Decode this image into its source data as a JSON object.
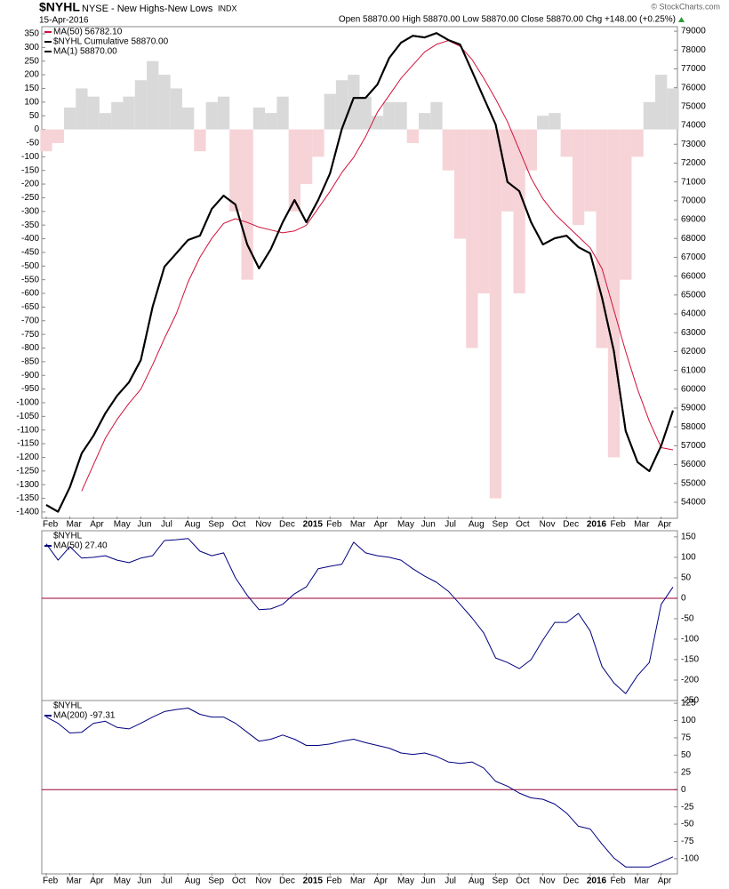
{
  "chart_data": [
    {
      "type": "line",
      "title": "$NYHL",
      "subtitle": "NYSE - New Highs-New Lows",
      "exchange": "INDX",
      "date": "15-Apr-2016",
      "quote": "Open 58870.00  High 58870.00  Low 58870.00  Close 58870.00  Chg +148.00 (+0.25%)",
      "credit": "© StockCharts.com",
      "categories": [
        "Feb",
        null,
        "Mar",
        null,
        "Apr",
        null,
        "May",
        null,
        "Jun",
        null,
        "Jul",
        null,
        "Aug",
        null,
        "Sep",
        null,
        "Oct",
        null,
        "Nov",
        null,
        "Dec",
        null,
        "2015",
        null,
        "Feb",
        null,
        "Mar",
        null,
        "Apr",
        null,
        "May",
        null,
        "Jun",
        null,
        "Jul",
        null,
        "Aug",
        null,
        "Sep",
        null,
        "Oct",
        null,
        "Nov",
        null,
        "Dec",
        null,
        "2016",
        null,
        "Feb",
        null,
        "Mar",
        null,
        "Apr",
        null
      ],
      "ylim": [
        -1423,
        376
      ],
      "yticks": [
        350,
        300,
        250,
        200,
        150,
        100,
        50,
        0,
        -50,
        -100,
        -150,
        -200,
        -250,
        -300,
        -350,
        -400,
        -450,
        -500,
        -550,
        -600,
        -650,
        -700,
        -750,
        -800,
        -850,
        -900,
        -950,
        -1000,
        -1050,
        -1100,
        -1150,
        -1200,
        -1250,
        -1300,
        -1350,
        -1400
      ],
      "y2lim": [
        53150,
        79240
      ],
      "y2ticks": [
        79000,
        78000,
        77000,
        76000,
        75000,
        74000,
        73000,
        72000,
        71000,
        70000,
        69000,
        68000,
        67000,
        66000,
        65000,
        64000,
        63000,
        62000,
        61000,
        60000,
        59000,
        58000,
        57000,
        56000,
        55000,
        54000
      ],
      "series": [
        {
          "type": "bar",
          "color": "#d9d9d9",
          "negative_color": "#f6d3d7",
          "values": [
            -80,
            -50,
            80,
            150,
            120,
            60,
            100,
            120,
            180,
            250,
            200,
            150,
            80,
            -80,
            100,
            120,
            -300,
            -550,
            80,
            60,
            120,
            -300,
            -200,
            -100,
            130,
            180,
            200,
            120,
            50,
            100,
            100,
            -50,
            60,
            100,
            -150,
            -400,
            -800,
            -600,
            -1350,
            -300,
            -600,
            -150,
            50,
            60,
            -100,
            -350,
            -300,
            -800,
            -1200,
            -550,
            -100,
            100,
            200,
            150
          ]
        },
        {
          "name": "MA(50) 56782.10",
          "color": "#d0103a",
          "axis": "y2",
          "width": 1,
          "values": [
            null,
            null,
            null,
            54600,
            56000,
            57400,
            58400,
            59250,
            60000,
            61300,
            62700,
            64000,
            65700,
            67000,
            68000,
            68800,
            69050,
            68850,
            68600,
            68450,
            68300,
            68400,
            68700,
            69600,
            70500,
            71500,
            72300,
            73400,
            74700,
            75600,
            76500,
            77200,
            77900,
            78300,
            78500,
            78200,
            77500,
            76500,
            75400,
            74200,
            72700,
            71200,
            70100,
            69300,
            68700,
            68100,
            67500,
            66400,
            64200,
            62000,
            60000,
            58300,
            56900,
            56782.1
          ]
        },
        {
          "name": "$NYHL Cumulative 58870.00",
          "color": "#000000",
          "axis": "y2",
          "width": 2,
          "values": [
            53860,
            53500,
            54800,
            56600,
            57540,
            58720,
            59660,
            60370,
            61550,
            64380,
            66500,
            67210,
            67920,
            68150,
            69570,
            70270,
            69800,
            67680,
            66410,
            67440,
            68860,
            70040,
            68860,
            70040,
            71450,
            73810,
            75460,
            75460,
            76170,
            77580,
            78390,
            78760,
            78670,
            78900,
            78530,
            78290,
            76880,
            75460,
            74050,
            71000,
            70510,
            68860,
            67680,
            68010,
            68150,
            67540,
            67210,
            64850,
            62020,
            57780,
            56130,
            55650,
            57000,
            58870
          ]
        },
        {
          "name": "MA(1) 58870.00",
          "color": "#000000",
          "axis": "y2",
          "width": 2,
          "values": [
            53860,
            53500,
            54800,
            56600,
            57540,
            58720,
            59660,
            60370,
            61550,
            64380,
            66500,
            67210,
            67920,
            68150,
            69570,
            70270,
            69800,
            67680,
            66410,
            67440,
            68860,
            70040,
            68860,
            70040,
            71450,
            73810,
            75460,
            75460,
            76170,
            77580,
            78390,
            78760,
            78670,
            78900,
            78530,
            78290,
            76880,
            75460,
            74050,
            71000,
            70510,
            68860,
            67680,
            68010,
            68150,
            67540,
            67210,
            64850,
            62020,
            57780,
            56130,
            55650,
            57000,
            58870
          ]
        }
      ]
    },
    {
      "type": "line",
      "label": "$NYHL",
      "yaxis": "right",
      "ylim": [
        -250,
        165
      ],
      "yticks": [
        150,
        100,
        50,
        0,
        -50,
        -100,
        -150,
        -200,
        -250
      ],
      "hlines": [
        {
          "value": 0,
          "color": "#990033"
        }
      ],
      "series": [
        {
          "name": "MA(50) 27.40",
          "color": "#000080",
          "width": 1,
          "values": [
            133,
            93,
            126,
            98,
            100,
            104,
            93,
            87,
            98,
            104,
            141,
            143,
            146,
            115,
            104,
            111,
            50,
            7,
            -28,
            -26,
            -15,
            11,
            28,
            72,
            78,
            83,
            137,
            111,
            104,
            100,
            93,
            72,
            54,
            39,
            17,
            -15,
            -48,
            -85,
            -146,
            -157,
            -172,
            -150,
            -102,
            -59,
            -59,
            -37,
            -80,
            -167,
            -207,
            -233,
            -189,
            -157,
            -15,
            27.4
          ]
        }
      ]
    },
    {
      "type": "line",
      "label": "$NYHL",
      "yaxis": "right",
      "categories": [
        "Feb",
        null,
        "Mar",
        null,
        "Apr",
        null,
        "May",
        null,
        "Jun",
        null,
        "Jul",
        null,
        "Aug",
        null,
        "Sep",
        null,
        "Oct",
        null,
        "Nov",
        null,
        "Dec",
        null,
        "2015",
        null,
        "Feb",
        null,
        "Mar",
        null,
        "Apr",
        null,
        "May",
        null,
        "Jun",
        null,
        "Jul",
        null,
        "Aug",
        null,
        "Sep",
        null,
        "Oct",
        null,
        "Nov",
        null,
        "Dec",
        null,
        "2016",
        null,
        "Feb",
        null,
        "Mar",
        null,
        "Apr",
        null
      ],
      "ylim": [
        -122,
        129
      ],
      "yticks": [
        125,
        100,
        75,
        50,
        25,
        0,
        -25,
        -50,
        -75,
        -100
      ],
      "hlines": [
        {
          "value": 0,
          "color": "#990033"
        }
      ],
      "series": [
        {
          "name": "MA(200) -97.31",
          "color": "#000080",
          "width": 1,
          "values": [
            105,
            96,
            82,
            83,
            96,
            99,
            90,
            88,
            96,
            105,
            113,
            116,
            118,
            109,
            105,
            105,
            96,
            83,
            70,
            73,
            79,
            73,
            64,
            64,
            66,
            70,
            73,
            68,
            64,
            60,
            53,
            51,
            53,
            48,
            40,
            38,
            40,
            31,
            12,
            5,
            -5,
            -12,
            -14,
            -21,
            -34,
            -53,
            -57,
            -79,
            -99,
            -112,
            -112,
            -112,
            -105,
            -97.31
          ]
        }
      ]
    }
  ]
}
